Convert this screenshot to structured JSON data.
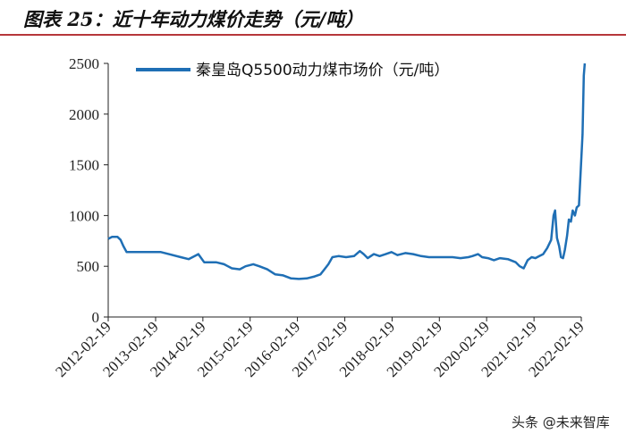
{
  "figure": {
    "title": "图表 25：近十年动力煤价走势（元/吨）",
    "watermark": "头条 @未来智库"
  },
  "colors": {
    "series": "#1f6fb5",
    "axis": "#222222",
    "accent": "#b6373b"
  },
  "chart_data": {
    "type": "line",
    "xlabel": "",
    "ylabel": "",
    "ylim": [
      0,
      2500
    ],
    "yticks": [
      0,
      500,
      1000,
      1500,
      2000,
      2500
    ],
    "xlim": [
      "2012-02-19",
      "2022-02-19"
    ],
    "xticks": [
      "2012-02-19",
      "2013-02-19",
      "2014-02-19",
      "2015-02-19",
      "2016-02-19",
      "2017-02-19",
      "2018-02-19",
      "2019-02-19",
      "2020-02-19",
      "2021-02-19",
      "2022-02-19"
    ],
    "grid": false,
    "legend_position": "top-left",
    "series": [
      {
        "name": "秦皇岛Q5500动力煤市场价（元/吨）",
        "points": [
          [
            "2012-02-19",
            770
          ],
          [
            "2012-03-20",
            790
          ],
          [
            "2012-05-01",
            790
          ],
          [
            "2012-05-25",
            760
          ],
          [
            "2012-06-15",
            700
          ],
          [
            "2012-07-10",
            640
          ],
          [
            "2012-10-01",
            640
          ],
          [
            "2013-01-01",
            640
          ],
          [
            "2013-04-01",
            640
          ],
          [
            "2013-06-01",
            620
          ],
          [
            "2013-09-01",
            590
          ],
          [
            "2013-11-01",
            570
          ],
          [
            "2013-12-01",
            590
          ],
          [
            "2014-01-15",
            620
          ],
          [
            "2014-03-01",
            540
          ],
          [
            "2014-06-01",
            540
          ],
          [
            "2014-08-01",
            520
          ],
          [
            "2014-10-01",
            480
          ],
          [
            "2014-12-01",
            470
          ],
          [
            "2015-01-15",
            500
          ],
          [
            "2015-03-15",
            520
          ],
          [
            "2015-05-01",
            500
          ],
          [
            "2015-07-01",
            470
          ],
          [
            "2015-09-01",
            420
          ],
          [
            "2015-11-01",
            410
          ],
          [
            "2016-01-01",
            380
          ],
          [
            "2016-03-01",
            375
          ],
          [
            "2016-05-01",
            380
          ],
          [
            "2016-07-01",
            400
          ],
          [
            "2016-08-15",
            420
          ],
          [
            "2016-09-15",
            470
          ],
          [
            "2016-10-15",
            520
          ],
          [
            "2016-11-15",
            590
          ],
          [
            "2017-01-01",
            600
          ],
          [
            "2017-03-01",
            590
          ],
          [
            "2017-05-01",
            600
          ],
          [
            "2017-06-15",
            650
          ],
          [
            "2017-07-15",
            620
          ],
          [
            "2017-08-15",
            580
          ],
          [
            "2017-10-01",
            620
          ],
          [
            "2017-11-15",
            600
          ],
          [
            "2018-01-01",
            620
          ],
          [
            "2018-02-15",
            640
          ],
          [
            "2018-04-01",
            610
          ],
          [
            "2018-06-01",
            630
          ],
          [
            "2018-08-01",
            620
          ],
          [
            "2018-10-01",
            600
          ],
          [
            "2018-12-01",
            590
          ],
          [
            "2019-02-01",
            590
          ],
          [
            "2019-04-01",
            590
          ],
          [
            "2019-06-01",
            590
          ],
          [
            "2019-08-01",
            580
          ],
          [
            "2019-10-01",
            590
          ],
          [
            "2019-11-01",
            600
          ],
          [
            "2019-12-15",
            620
          ],
          [
            "2020-01-15",
            590
          ],
          [
            "2020-03-01",
            580
          ],
          [
            "2020-04-15",
            560
          ],
          [
            "2020-06-01",
            580
          ],
          [
            "2020-08-01",
            570
          ],
          [
            "2020-10-01",
            540
          ],
          [
            "2020-11-01",
            500
          ],
          [
            "2020-12-01",
            480
          ],
          [
            "2021-01-01",
            560
          ],
          [
            "2021-02-01",
            590
          ],
          [
            "2021-03-01",
            580
          ],
          [
            "2021-04-01",
            600
          ],
          [
            "2021-05-01",
            620
          ],
          [
            "2021-06-01",
            680
          ],
          [
            "2021-07-01",
            760
          ],
          [
            "2021-07-20",
            1000
          ],
          [
            "2021-08-01",
            1050
          ],
          [
            "2021-08-15",
            780
          ],
          [
            "2021-09-01",
            700
          ],
          [
            "2021-09-15",
            590
          ],
          [
            "2021-10-01",
            580
          ],
          [
            "2021-10-15",
            660
          ],
          [
            "2021-11-01",
            800
          ],
          [
            "2021-11-15",
            960
          ],
          [
            "2021-12-01",
            940
          ],
          [
            "2021-12-15",
            1050
          ],
          [
            "2022-01-01",
            1000
          ],
          [
            "2022-01-15",
            1080
          ],
          [
            "2022-02-01",
            1100
          ],
          [
            "2022-02-15",
            1450
          ],
          [
            "2022-03-01",
            1800
          ],
          [
            "2022-03-10",
            2380
          ],
          [
            "2022-03-18",
            2500
          ]
        ]
      }
    ]
  }
}
